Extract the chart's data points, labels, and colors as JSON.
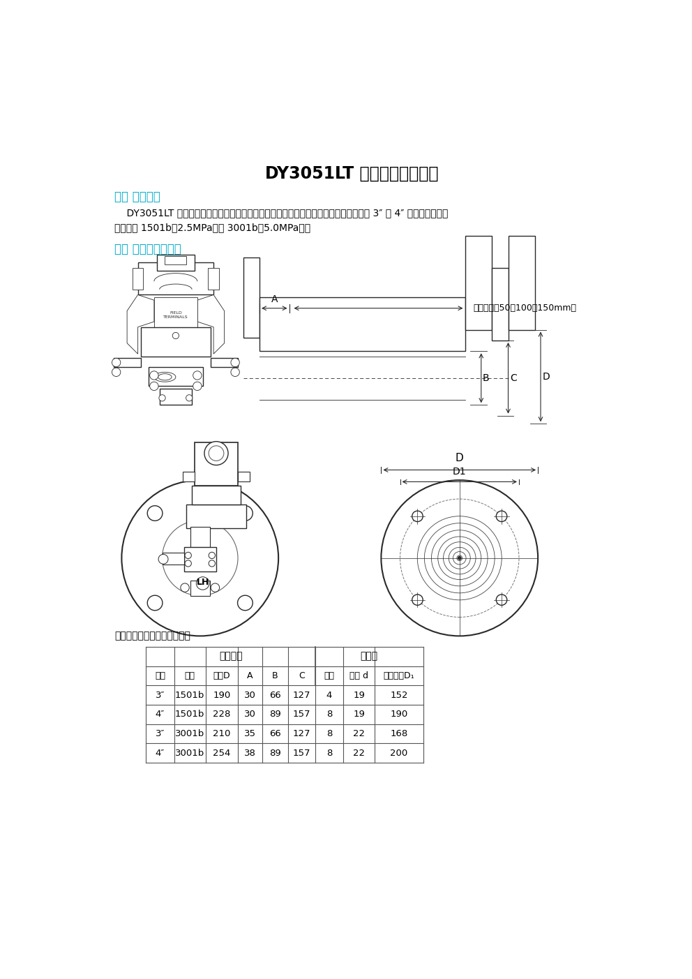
{
  "title_bold": "DY3051LT",
  "title_normal": " 法兰式液位变送器",
  "section1_title": "一、 产品概述",
  "section1_body_line1": "    DY3051LT 型法兰液位变送器可对多种容器进行精密的液位和液体密度测量。法兰有了 3″ 和 4″ 两种规格，法兰",
  "section1_body_line2": "等级分为 1501b（2.5MPa）和 3001b（5.0MPa）。",
  "section2_title": "二、 外形安装尺寸图",
  "table_caption": "法兰式液位变送器外形尺寸图",
  "table_header1": "法兰尺寸",
  "table_header2": "螺栓孔",
  "col_headers": [
    "尺寸",
    "规格",
    "直径D",
    "A",
    "B",
    "C",
    "数目",
    "直径 d",
    "分布直径D₁"
  ],
  "table_data": [
    [
      "3″",
      "1501b",
      "190",
      "30",
      "66",
      "127",
      "4",
      "19",
      "152"
    ],
    [
      "4″",
      "1501b",
      "228",
      "30",
      "89",
      "157",
      "8",
      "19",
      "190"
    ],
    [
      "3″",
      "3001b",
      "210",
      "35",
      "66",
      "127",
      "8",
      "22",
      "168"
    ],
    [
      "4″",
      "3001b",
      "254",
      "38",
      "89",
      "157",
      "8",
      "22",
      "200"
    ]
  ],
  "bg_color": "#ffffff",
  "text_color": "#000000",
  "cyan_color": "#00aacc",
  "annotation_depth": "插入深度（50，100，150mm）",
  "field_terminals": "FIELD\nTERMINALS"
}
